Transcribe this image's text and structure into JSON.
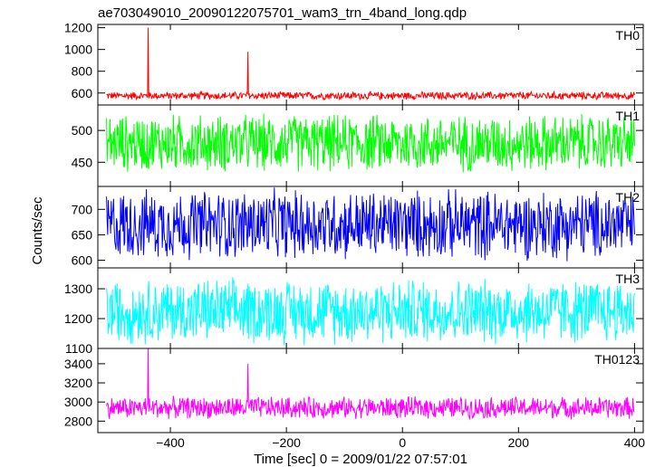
{
  "chart_data": {
    "type": "line",
    "title": "ae703049010_20090122075701_wam3_trn_4band_long.qdp",
    "xlabel": "Time [sec] 0 = 2009/01/22 07:57:01",
    "ylabel": "Counts/sec",
    "xlim": [
      -525,
      415
    ],
    "x_ticks": [
      -400,
      -200,
      0,
      200,
      400
    ],
    "x_tick_labels": [
      "−400",
      "−200",
      "0",
      "200",
      "400"
    ],
    "data_x_range": [
      -510,
      400
    ],
    "grid": false,
    "series": [
      {
        "name": "TH0",
        "color": "#ff0000",
        "ylim": [
          490,
          1230
        ],
        "y_ticks": [
          600,
          800,
          1000,
          1200
        ],
        "y_tick_labels": [
          "600",
          "800",
          "1000",
          "1200"
        ],
        "baseline": 575,
        "band": [
          540,
          620
        ],
        "spikes": [
          {
            "x": -438,
            "y": 1200
          },
          {
            "x": -266,
            "y": 980
          }
        ]
      },
      {
        "name": "TH1",
        "color": "#00ff00",
        "ylim": [
          412,
          540
        ],
        "y_ticks": [
          450,
          500
        ],
        "y_tick_labels": [
          "450",
          "500"
        ],
        "baseline": 480,
        "band": [
          430,
          530
        ],
        "spikes": []
      },
      {
        "name": "TH2",
        "color": "#0000ff",
        "ylim": [
          585,
          745
        ],
        "y_ticks": [
          600,
          650,
          700
        ],
        "y_tick_labels": [
          "600",
          "650",
          "700"
        ],
        "baseline": 670,
        "band": [
          590,
          740
        ],
        "spikes": []
      },
      {
        "name": "TH3",
        "color": "#00ffff",
        "ylim": [
          1100,
          1370
        ],
        "y_ticks": [
          1100,
          1200,
          1300
        ],
        "y_tick_labels": [
          "1100",
          "1200",
          "1300"
        ],
        "baseline": 1225,
        "band": [
          1110,
          1350
        ],
        "spikes": []
      },
      {
        "name": "TH0123",
        "color": "#ff00ff",
        "ylim": [
          2680,
          3560
        ],
        "y_ticks": [
          2800,
          3000,
          3200,
          3400
        ],
        "y_tick_labels": [
          "2800",
          "3000",
          "3200",
          "3400"
        ],
        "baseline": 2940,
        "band": [
          2840,
          3090
        ],
        "spikes": [
          {
            "x": -438,
            "y": 3560
          },
          {
            "x": -266,
            "y": 3400
          }
        ]
      }
    ]
  }
}
